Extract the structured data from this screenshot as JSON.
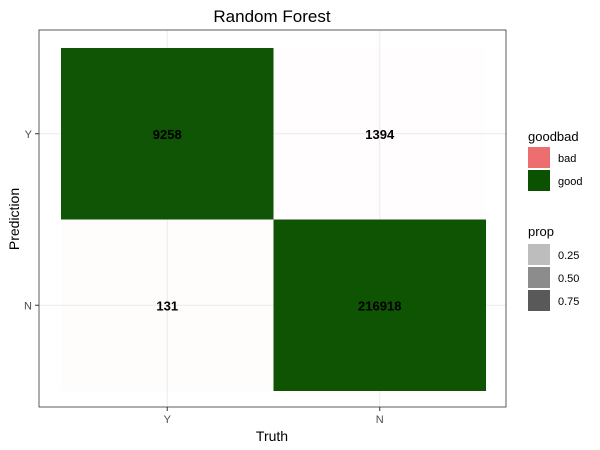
{
  "chart_data": {
    "type": "heatmap",
    "title": "Random Forest",
    "xlabel": "Truth",
    "ylabel": "Prediction",
    "x_categories": [
      "Y",
      "N"
    ],
    "y_categories": [
      "Y",
      "N"
    ],
    "cells": [
      {
        "truth": "Y",
        "prediction": "Y",
        "value": 9258,
        "goodbad": "good",
        "prop": 0.98
      },
      {
        "truth": "N",
        "prediction": "Y",
        "value": 1394,
        "goodbad": "bad",
        "prop": 0.01
      },
      {
        "truth": "Y",
        "prediction": "N",
        "value": 131,
        "goodbad": "bad",
        "prop": 0.02
      },
      {
        "truth": "N",
        "prediction": "N",
        "value": 216918,
        "goodbad": "good",
        "prop": 0.99
      }
    ],
    "grid": true,
    "legends": {
      "placement": "right",
      "fill": {
        "title": "goodbad",
        "items": [
          {
            "label": "bad",
            "color": "#ed6e6e"
          },
          {
            "label": "good",
            "color": "#0b5200"
          }
        ]
      },
      "alpha": {
        "title": "prop",
        "items": [
          {
            "label": "0.25",
            "color": "#bdbdbd"
          },
          {
            "label": "0.50",
            "color": "#8c8c8c"
          },
          {
            "label": "0.75",
            "color": "#595959"
          }
        ]
      }
    },
    "colors": {
      "good": "#0b5200",
      "bad": "#ed6e6e",
      "panel_border": "#333333",
      "grid": "#ebebeb"
    }
  }
}
